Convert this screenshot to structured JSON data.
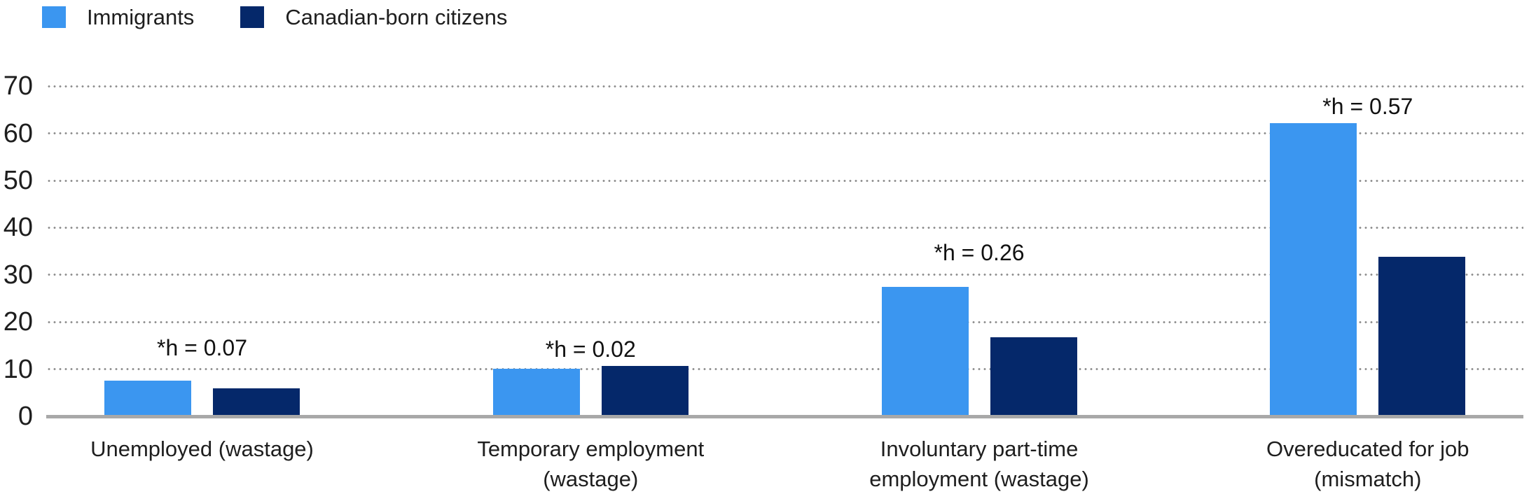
{
  "legend": {
    "items": [
      {
        "label": "Immigrants",
        "color": "#3b96f0"
      },
      {
        "label": "Canadian-born citizens",
        "color": "#05286a"
      }
    ]
  },
  "chart_data": {
    "type": "bar",
    "title": "",
    "xlabel": "",
    "ylabel": "",
    "categories": [
      "Unemployed (wastage)",
      "Temporary employment (wastage)",
      "Involuntary part-time employment (wastage)",
      "Overeducated for job (mismatch)"
    ],
    "category_lines": [
      [
        "Unemployed (wastage)"
      ],
      [
        "Temporary employment",
        "(wastage)"
      ],
      [
        "Involuntary part-time",
        "employment (wastage)"
      ],
      [
        "Overeducated for job",
        "(mismatch)"
      ]
    ],
    "series": [
      {
        "name": "Immigrants",
        "color": "#3b96f0",
        "values": [
          7.2,
          9.8,
          27.2,
          61.8
        ]
      },
      {
        "name": "Canadian-born citizens",
        "color": "#05286a",
        "values": [
          5.6,
          10.4,
          16.4,
          33.5
        ]
      }
    ],
    "annotations": [
      {
        "text": "*h = 0.07",
        "y_value": 14.5
      },
      {
        "text": "*h = 0.02",
        "y_value": 14.2
      },
      {
        "text": "*h = 0.26",
        "y_value": 34.7
      },
      {
        "text": "*h = 0.57",
        "y_value": 65.7
      }
    ],
    "yaxis": {
      "ticks": [
        0,
        10,
        20,
        30,
        40,
        50,
        60,
        70
      ],
      "min": 0,
      "max": 70,
      "gridlines": "dotted"
    },
    "legend_position": "top-left",
    "grid": true
  },
  "colors": {
    "background": "#ffffff",
    "gridline": "#8d8d8d",
    "baseline": "#a8a8a8",
    "text": "#1e1e1e"
  }
}
